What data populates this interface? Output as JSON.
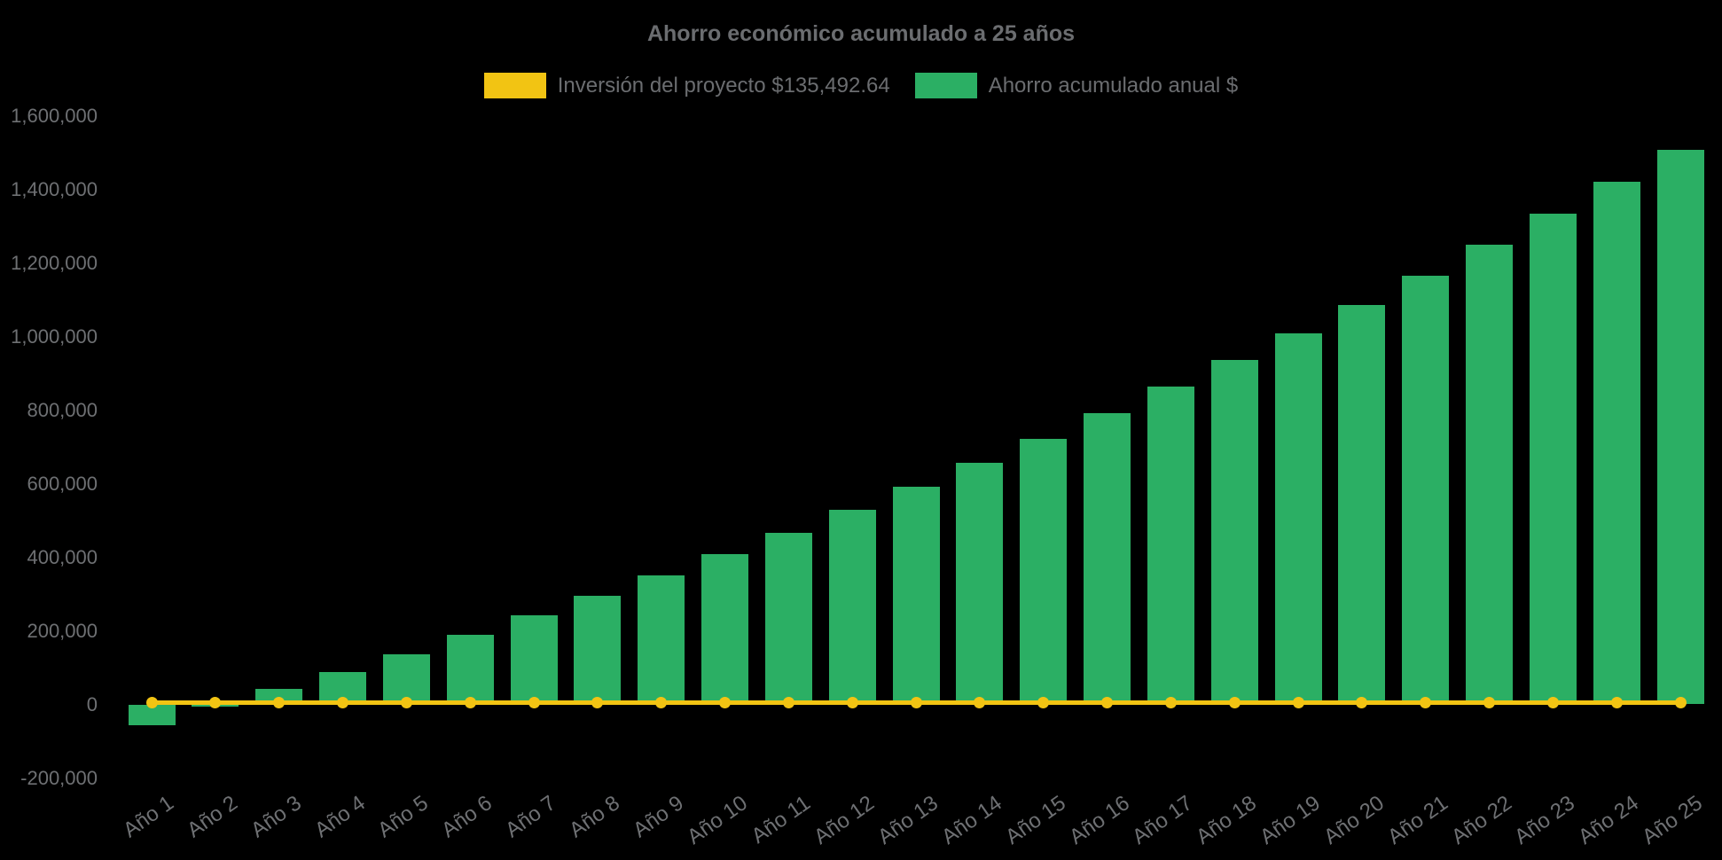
{
  "title": "Ahorro económico acumulado a 25 años",
  "colors": {
    "background": "#000000",
    "investment": "#F2C413",
    "savings": "#2BAF64",
    "label_text": "#6E7073",
    "title_text": "#6B6D70"
  },
  "legend": {
    "items": [
      {
        "id": "investment",
        "label": "Inversión del proyecto $135,492.64",
        "color": "#F2C413"
      },
      {
        "id": "savings",
        "label": "Ahorro acumulado anual $",
        "color": "#2BAF64"
      }
    ]
  },
  "chart_data": {
    "type": "bar",
    "title": "Ahorro económico acumulado a 25 años",
    "categories": [
      "Año 1",
      "Año 2",
      "Año 3",
      "Año 4",
      "Año 5",
      "Año 6",
      "Año 7",
      "Año 8",
      "Año 9",
      "Año 10",
      "Año 11",
      "Año 12",
      "Año 13",
      "Año 14",
      "Año 15",
      "Año 16",
      "Año 17",
      "Año 18",
      "Año 19",
      "Año 20",
      "Año 21",
      "Año 22",
      "Año 23",
      "Año 24",
      "Año 25"
    ],
    "series": [
      {
        "name": "Ahorro acumulado anual $",
        "type": "bar",
        "color": "#2BAF64",
        "values": [
          -56000,
          -5000,
          41000,
          89000,
          137000,
          188000,
          242000,
          294000,
          351000,
          408000,
          467000,
          529000,
          592000,
          657000,
          721000,
          792000,
          863000,
          935000,
          1009000,
          1086000,
          1166000,
          1250000,
          1333000,
          1420000,
          1508000
        ]
      },
      {
        "name": "Inversión del proyecto $135,492.64",
        "type": "line",
        "color": "#F2C413",
        "marker": "circle",
        "constant_value": 0,
        "investment_amount_text": "$135,492.64"
      }
    ],
    "xlabel": "",
    "ylabel": "",
    "ylim": [
      -200000,
      1600000
    ],
    "ytick_step": 200000,
    "ytick_format": "thousands-comma",
    "xtick_rotation_deg": -35,
    "grid": false,
    "legend_position": "top-center",
    "plot_background": "#000000"
  }
}
